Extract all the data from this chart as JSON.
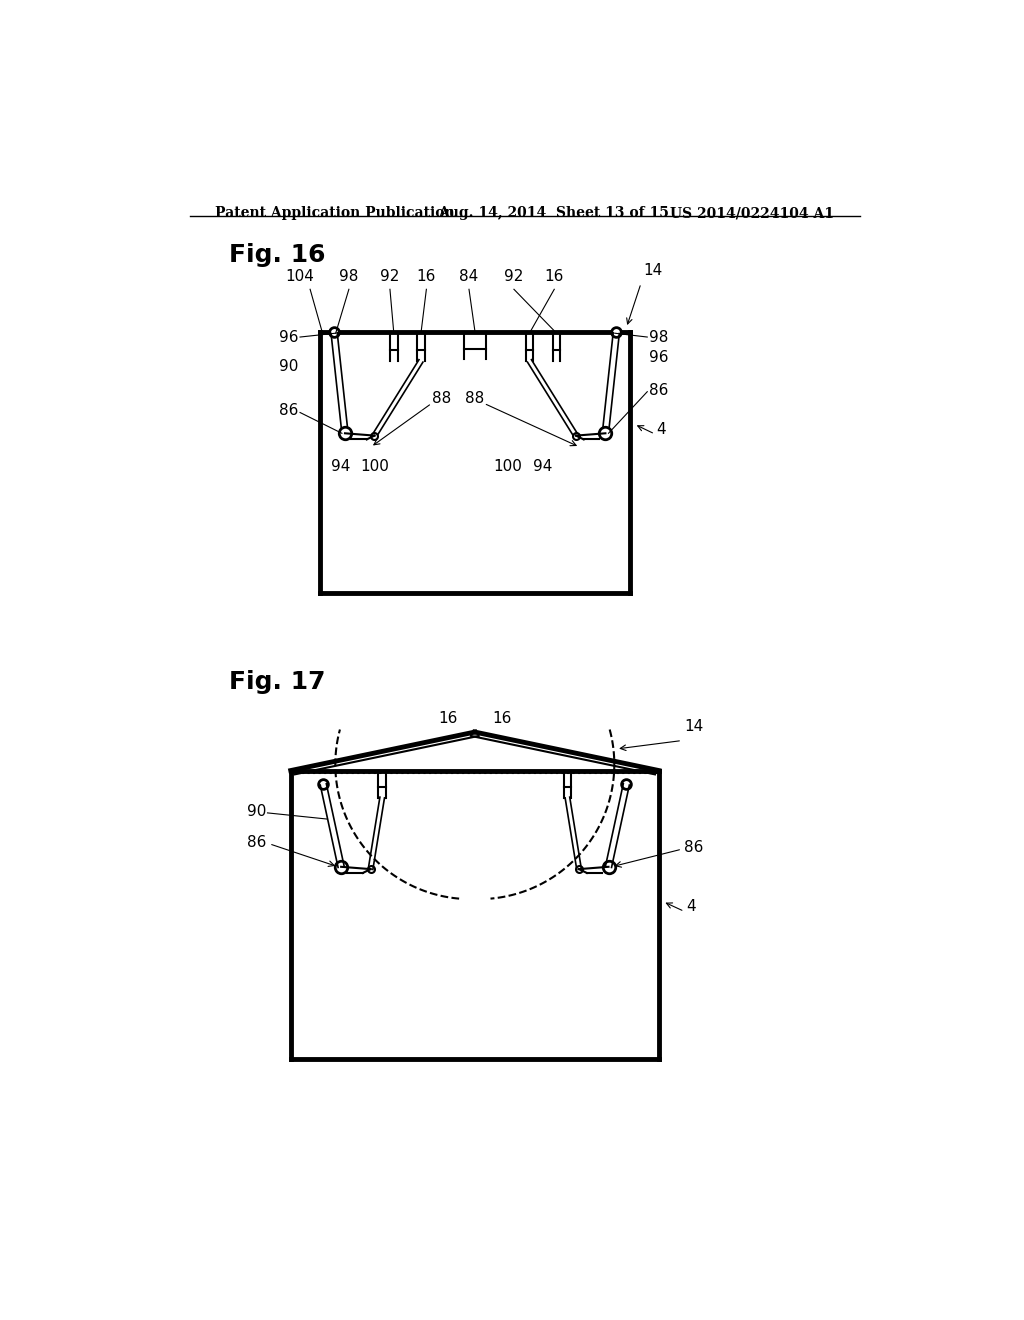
{
  "bg_color": "#ffffff",
  "header_text": "Patent Application Publication",
  "header_date": "Aug. 14, 2014  Sheet 13 of 15",
  "header_patent": "US 2014/0224104 A1",
  "fig16_label": "Fig. 16",
  "fig17_label": "Fig. 17",
  "line_color": "#000000",
  "thick_lw": 3.5,
  "thin_lw": 1.5,
  "double_lw": 1.2
}
